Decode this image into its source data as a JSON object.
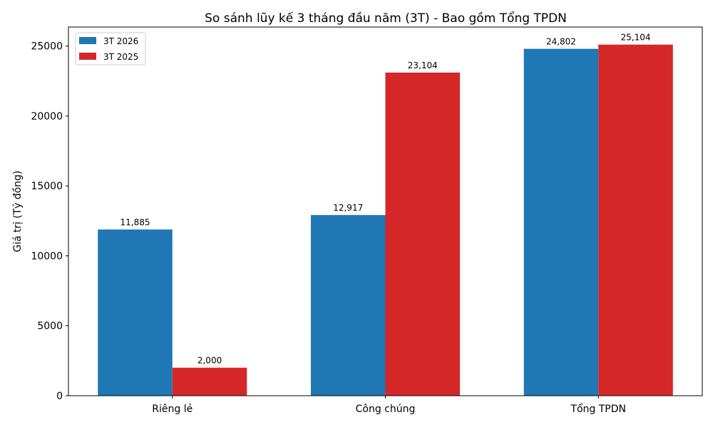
{
  "chart_data": {
    "type": "bar",
    "title": "So sánh lũy kế 3 tháng đầu năm (3T) - Bao gồm Tổng TPDN",
    "xlabel": "",
    "ylabel": "Giá trị (Tỷ đồng)",
    "categories": [
      "Riêng lẻ",
      "Công chúng",
      "Tổng TPDN"
    ],
    "series": [
      {
        "name": "3T 2026",
        "color": "#1f77b4",
        "values": [
          11885,
          12917,
          24802
        ],
        "labels": [
          "11,885",
          "12,917",
          "24,802"
        ]
      },
      {
        "name": "3T 2025",
        "color": "#d62728",
        "values": [
          2000,
          23104,
          25104
        ],
        "labels": [
          "2,000",
          "23,104",
          "25,104"
        ]
      }
    ],
    "ylim": [
      0,
      26360
    ],
    "yticks": [
      0,
      5000,
      10000,
      15000,
      20000,
      25000
    ],
    "grid": false,
    "legend": "top-left"
  }
}
